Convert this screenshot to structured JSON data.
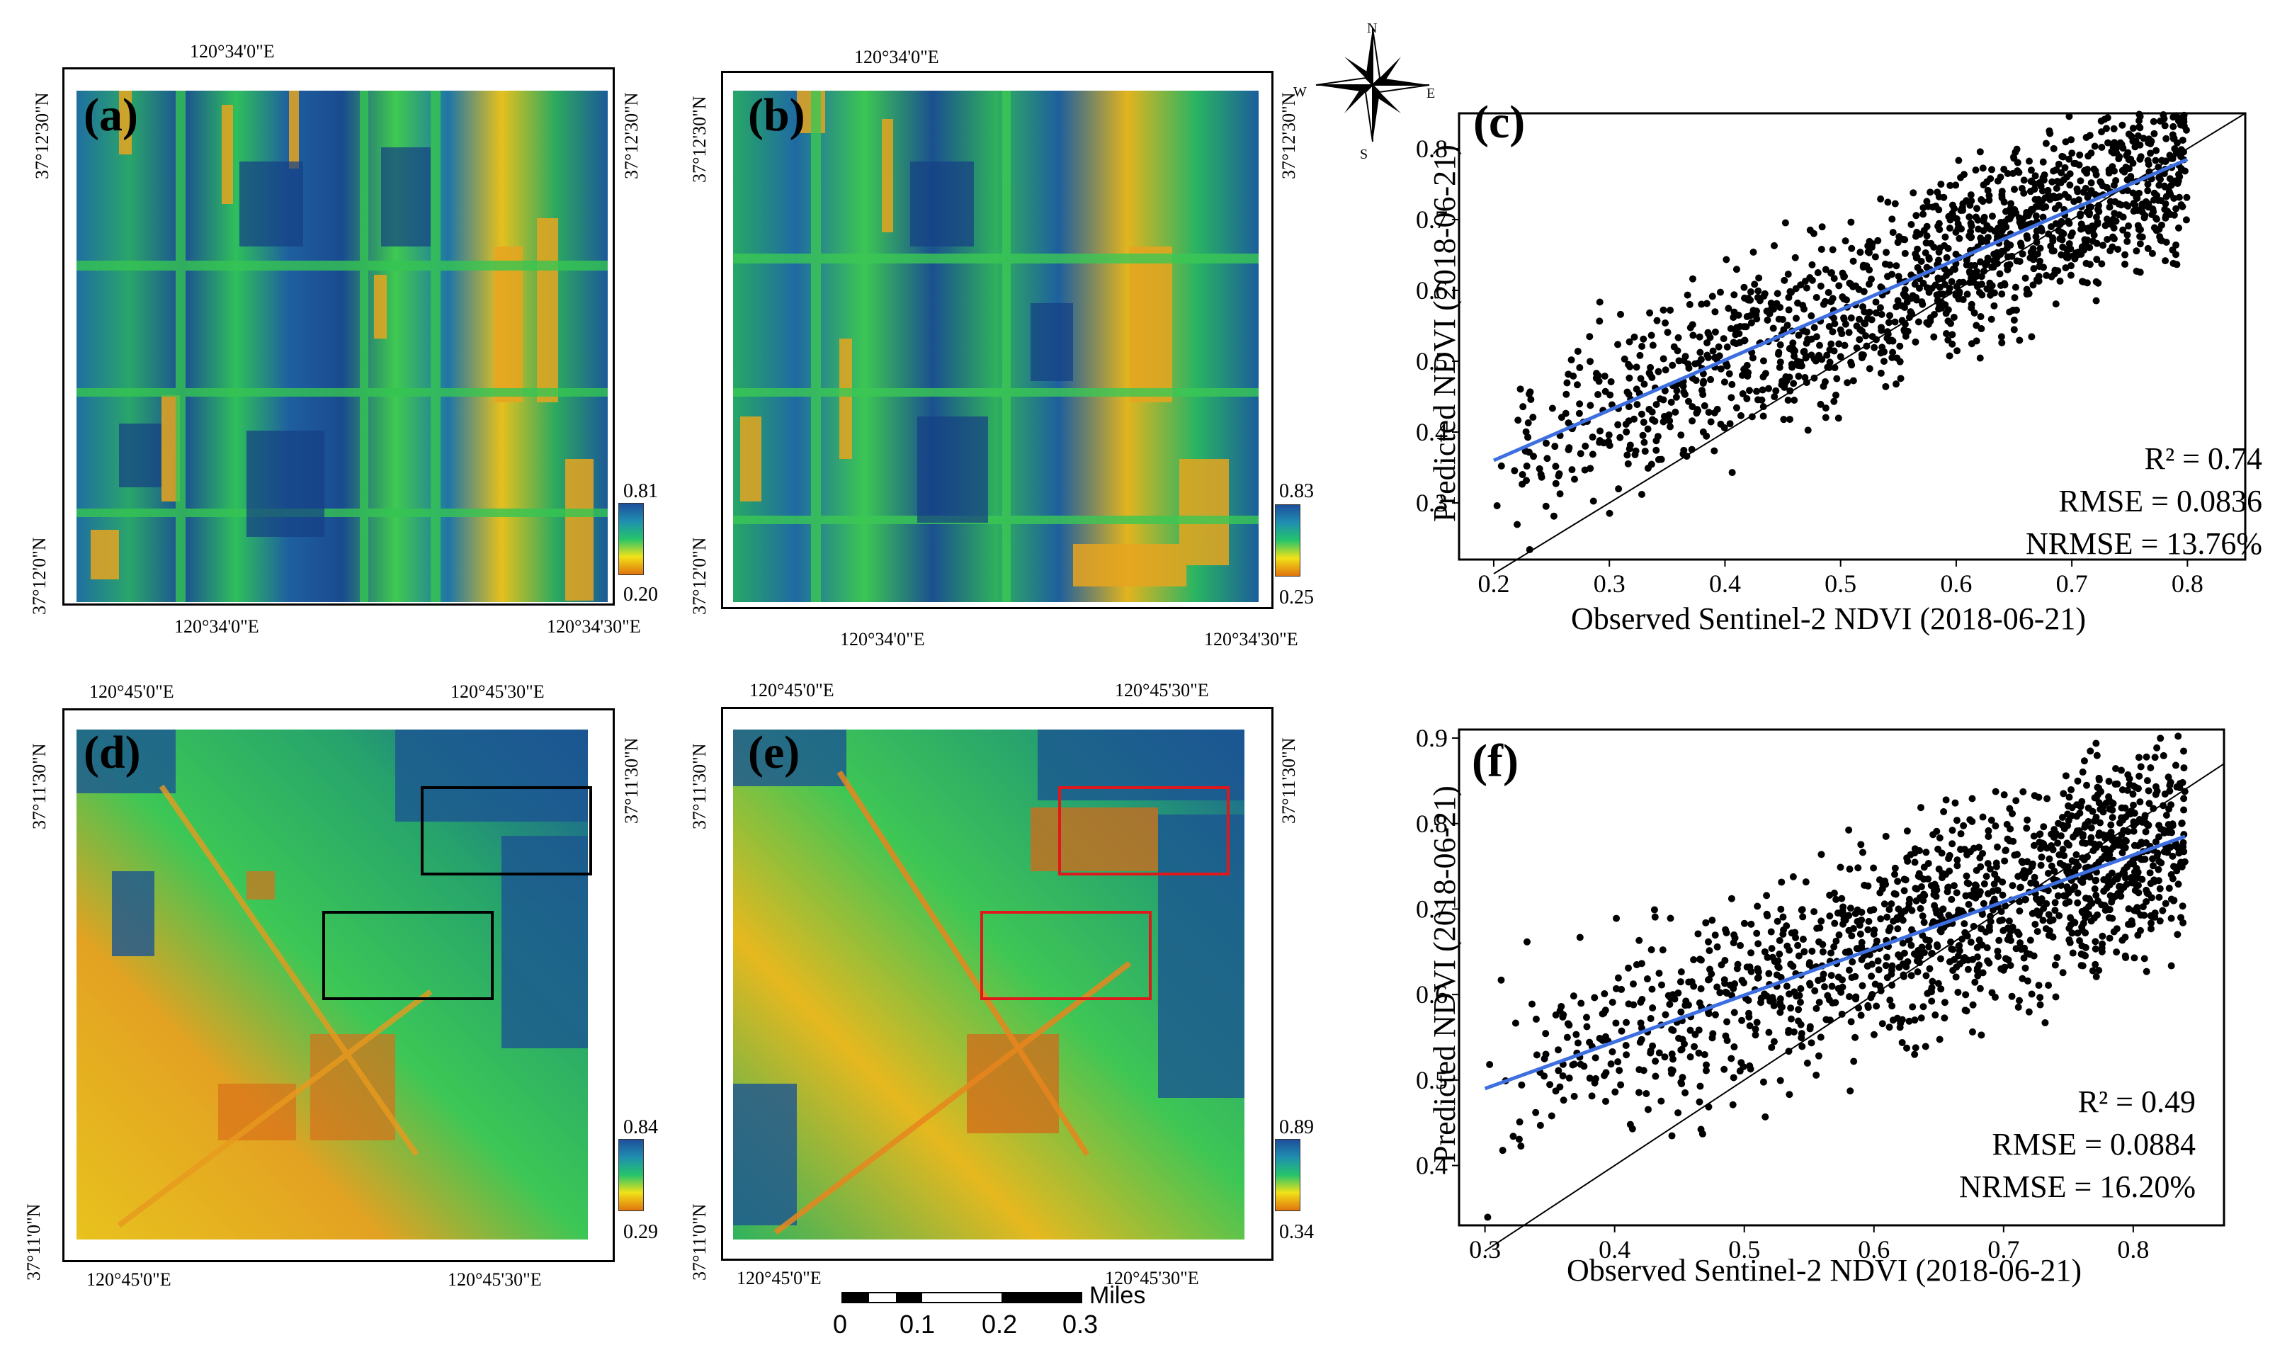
{
  "panels": {
    "a": {
      "label": "(a)",
      "top_lon": "120°34'0\"E",
      "bottom_lon1": "120°34'0\"E",
      "bottom_lon2": "120°34'30\"E",
      "lat_top": "37°12'30\"N",
      "lat_bottom": "37°12'0\"N",
      "right_lat": "37°12'30\"N",
      "cb_max": "0.81",
      "cb_min": "0.20"
    },
    "b": {
      "label": "(b)",
      "top_lon": "120°34'0\"E",
      "bottom_lon1": "120°34'0\"E",
      "bottom_lon2": "120°34'30\"E",
      "lat_top": "37°12'30\"N",
      "lat_bottom": "37°12'0\"N",
      "right_lat": "37°12'30\"N",
      "cb_max": "0.83",
      "cb_min": "0.25"
    },
    "d": {
      "label": "(d)",
      "top_lon1": "120°45'0\"E",
      "top_lon2": "120°45'30\"E",
      "bottom_lon1": "120°45'0\"E",
      "bottom_lon2": "120°45'30\"E",
      "lat_top": "37°11'30\"N",
      "lat_bottom": "37°11'0\"N",
      "right_lat": "37°11'30\"N",
      "cb_max": "0.84",
      "cb_min": "0.29"
    },
    "e": {
      "label": "(e)",
      "top_lon1": "120°45'0\"E",
      "top_lon2": "120°45'30\"E",
      "bottom_lon1": "120°45'0\"E",
      "bottom_lon2": "120°45'30\"E",
      "lat_top": "37°11'30\"N",
      "lat_bottom": "37°11'0\"N",
      "right_lat": "37°11'30\"N",
      "cb_max": "0.89",
      "cb_min": "0.34"
    }
  },
  "compass": {
    "n": "N",
    "s": "S",
    "e": "E",
    "w": "W"
  },
  "scalebar": {
    "unit": "Miles",
    "ticks": [
      "0",
      "0.1",
      "0.2",
      "0.3"
    ]
  },
  "chart_data": [
    {
      "panel": "(c)",
      "type": "scatter",
      "xlabel": "Observed Sentinel-2 NDVI (2018-06-21)",
      "ylabel": "Predicted NDVI (2018-06-21)",
      "xlim": [
        0.17,
        0.85
      ],
      "ylim": [
        0.22,
        0.85
      ],
      "xticks": [
        "0.2",
        "0.3",
        "0.4",
        "0.5",
        "0.6",
        "0.7",
        "0.8"
      ],
      "yticks": [
        "0.3",
        "0.4",
        "0.5",
        "0.6",
        "0.7",
        "0.8"
      ],
      "fit_line": {
        "x": [
          0.2,
          0.8
        ],
        "y": [
          0.36,
          0.785
        ]
      },
      "identity_line": {
        "x": [
          0.2,
          0.85
        ],
        "y": [
          0.2,
          0.85
        ]
      },
      "stats": {
        "r2": "R² = 0.74",
        "rmse": "RMSE = 0.0836",
        "nrmse": "NRMSE = 13.76%"
      }
    },
    {
      "panel": "(f)",
      "type": "scatter",
      "xlabel": "Observed Sentinel-2 NDVI (2018-06-21)",
      "ylabel": "Predicted NDVI (2018-06-21)",
      "xlim": [
        0.28,
        0.87
      ],
      "ylim": [
        0.33,
        0.91
      ],
      "xticks": [
        "0.3",
        "0.4",
        "0.5",
        "0.6",
        "0.7",
        "0.8"
      ],
      "yticks": [
        "0.4",
        "0.5",
        "0.6",
        "0.7",
        "0.8",
        "0.9"
      ],
      "fit_line": {
        "x": [
          0.3,
          0.84
        ],
        "y": [
          0.49,
          0.785
        ]
      },
      "identity_line": {
        "x": [
          0.3,
          0.87
        ],
        "y": [
          0.3,
          0.87
        ]
      },
      "stats": {
        "r2": "R² = 0.49",
        "rmse": "RMSE = 0.0884",
        "nrmse": "NRMSE = 16.20%"
      }
    }
  ]
}
